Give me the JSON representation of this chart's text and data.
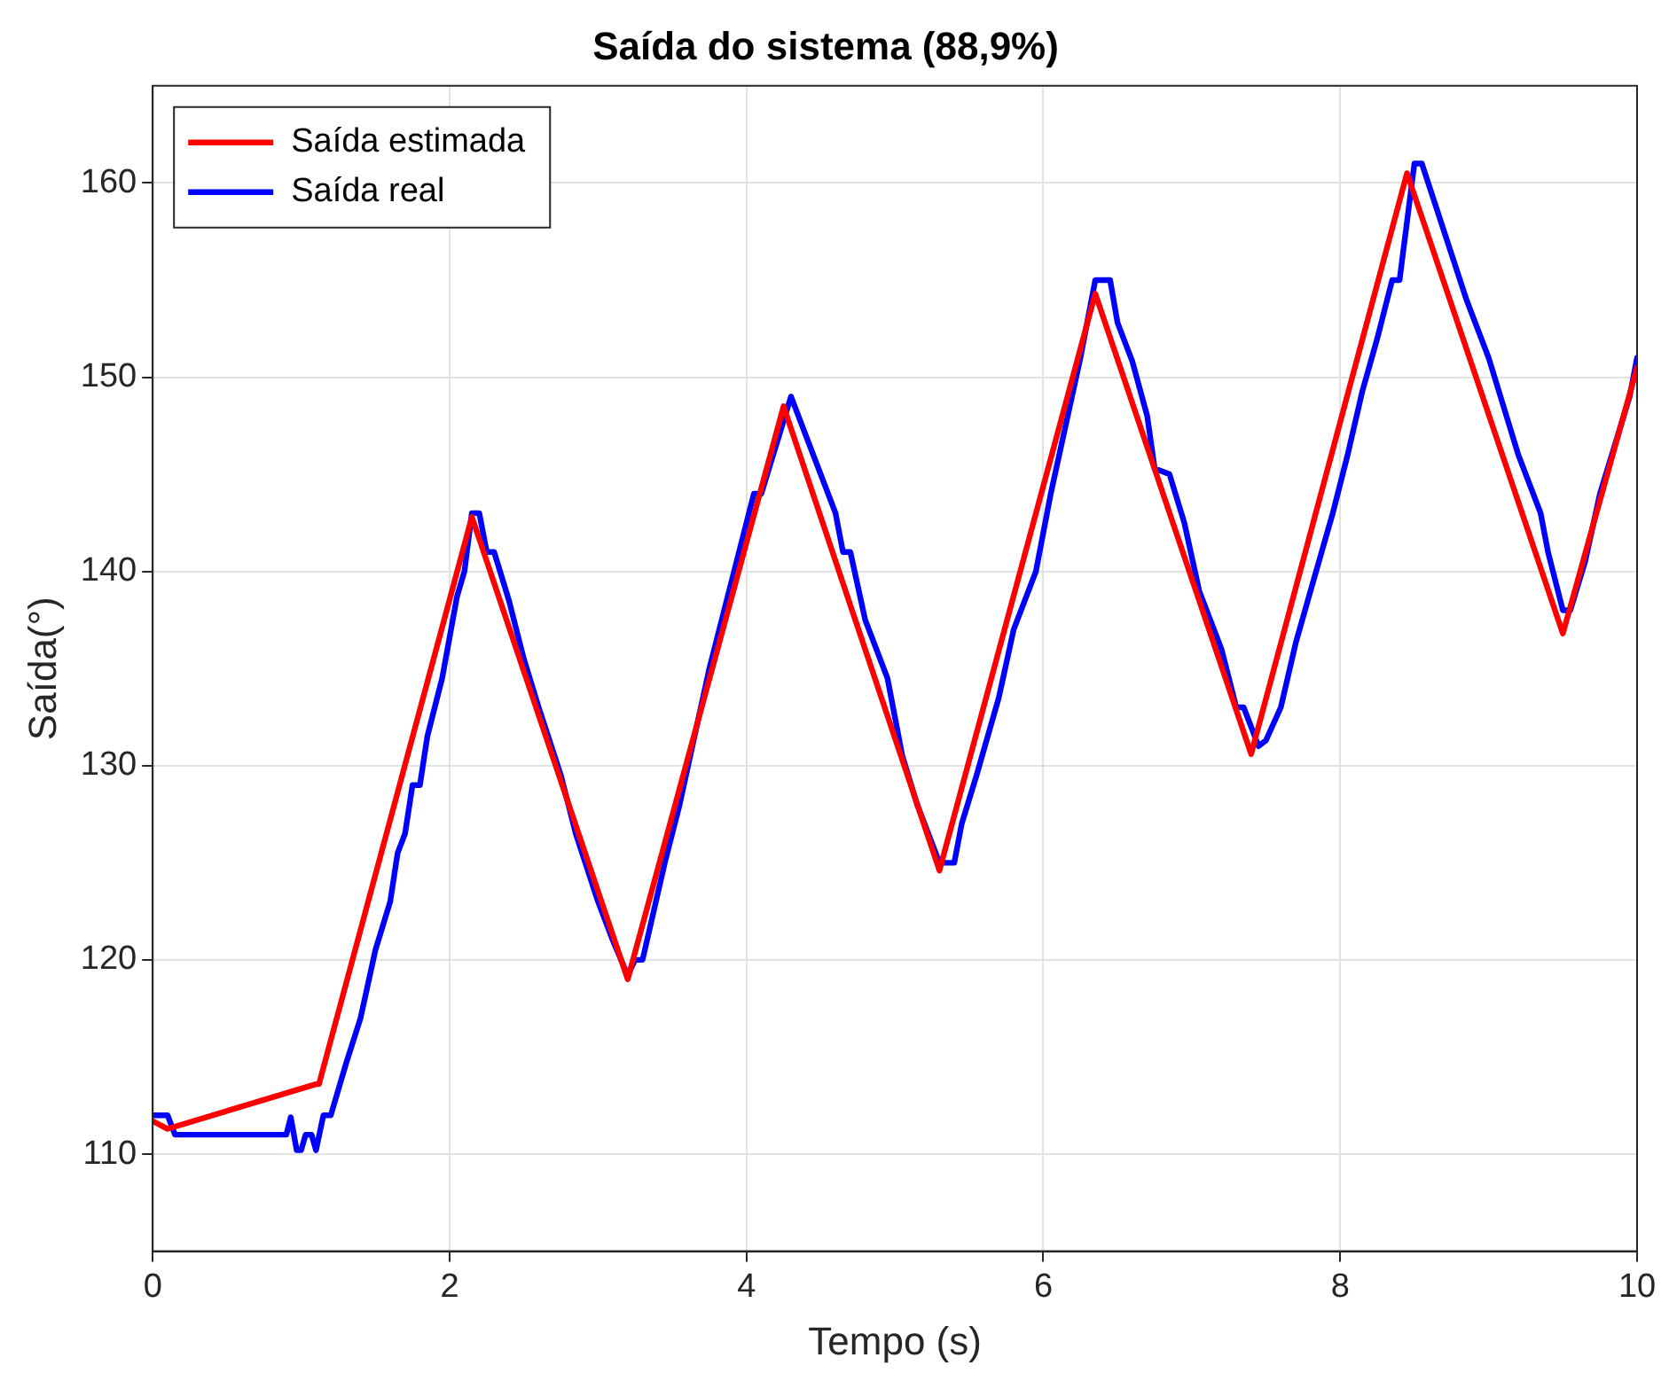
{
  "chart_data": {
    "type": "line",
    "title": "Saída do sistema (88,9%)",
    "xlabel": "Tempo (s)",
    "ylabel": "Saída(°)",
    "xlim": [
      0,
      10
    ],
    "xticks": [
      0,
      2,
      4,
      6,
      8,
      10
    ],
    "ylim": [
      105,
      165
    ],
    "yticks": [
      110,
      120,
      130,
      140,
      150,
      160
    ],
    "grid": true,
    "legend": "top left",
    "marker": "none",
    "line_style": "solid",
    "series": [
      {
        "name": "Saída estimada",
        "color": "#ff0000",
        "x": [
          0,
          0.1,
          1.1,
          1.12,
          2.15,
          3.2,
          4.25,
          5.3,
          6.35,
          7.4,
          8.45,
          9.5,
          10
        ],
        "values": [
          111.7,
          111.3,
          113.6,
          113.6,
          142.8,
          119,
          148.5,
          124.6,
          154.3,
          130.6,
          160.5,
          136.8,
          150.5
        ]
      },
      {
        "name": "Saída real",
        "color": "#0000ff",
        "x": [
          0,
          0.1,
          0.15,
          0.9,
          0.93,
          0.97,
          1.0,
          1.03,
          1.07,
          1.1,
          1.15,
          1.2,
          1.3,
          1.4,
          1.5,
          1.6,
          1.65,
          1.7,
          1.75,
          1.8,
          1.85,
          1.95,
          2.05,
          2.1,
          2.15,
          2.2,
          2.25,
          2.3,
          2.4,
          2.5,
          2.6,
          2.75,
          2.85,
          3.0,
          3.1,
          3.2,
          3.25,
          3.3,
          3.45,
          3.55,
          3.65,
          3.75,
          3.85,
          3.95,
          4.05,
          4.1,
          4.2,
          4.3,
          4.45,
          4.6,
          4.65,
          4.7,
          4.8,
          4.95,
          5.05,
          5.15,
          5.25,
          5.3,
          5.4,
          5.45,
          5.55,
          5.7,
          5.8,
          5.95,
          6.05,
          6.15,
          6.25,
          6.35,
          6.45,
          6.5,
          6.6,
          6.7,
          6.75,
          6.85,
          6.95,
          7.05,
          7.2,
          7.3,
          7.35,
          7.45,
          7.5,
          7.6,
          7.7,
          7.8,
          7.95,
          8.05,
          8.15,
          8.25,
          8.35,
          8.4,
          8.5,
          8.55,
          8.7,
          8.85,
          9.0,
          9.1,
          9.2,
          9.35,
          9.4,
          9.5,
          9.55,
          9.65,
          9.75,
          9.85,
          9.95,
          10
        ],
        "values": [
          112,
          112,
          111,
          111,
          111.9,
          110.2,
          110.2,
          111,
          111,
          110.2,
          112,
          112,
          114.6,
          117,
          120.5,
          123,
          125.5,
          126.5,
          129,
          129,
          131.5,
          134.5,
          138.7,
          140,
          143,
          143,
          141,
          141,
          138.5,
          135.5,
          133,
          129.5,
          126.5,
          123,
          121,
          119.2,
          120,
          120,
          125,
          128,
          131.5,
          135,
          138,
          141,
          144,
          144,
          146.5,
          149,
          146,
          143,
          141,
          141,
          137.5,
          134.5,
          130.5,
          128,
          126,
          125,
          125,
          127,
          129.5,
          133.5,
          137,
          140,
          144,
          147.5,
          151,
          155,
          155,
          152.8,
          150.8,
          148,
          145.3,
          145,
          142.5,
          139,
          136,
          133,
          133,
          131,
          131.3,
          133,
          136.3,
          139,
          143,
          146,
          149.3,
          152,
          155,
          155,
          161,
          161,
          157.5,
          154,
          151,
          148.5,
          146,
          143,
          141,
          138,
          138,
          140.5,
          144,
          146.5,
          149,
          151
        ]
      }
    ]
  }
}
